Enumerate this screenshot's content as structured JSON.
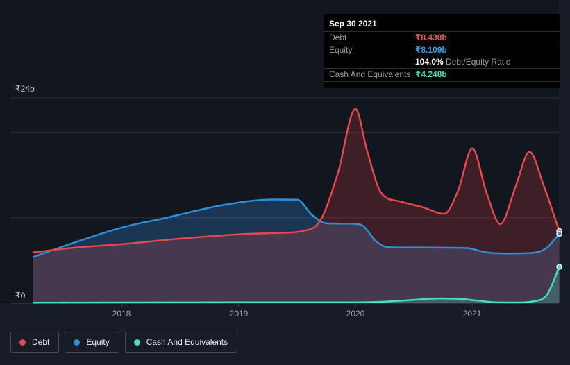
{
  "tooltip": {
    "date": "Sep 30 2021",
    "debt_label": "Debt",
    "debt_value": "₹8.430b",
    "equity_label": "Equity",
    "equity_value": "₹8.109b",
    "ratio_value": "104.0%",
    "ratio_label": "Debt/Equity Ratio",
    "cash_label": "Cash And Equivalents",
    "cash_value": "₹4.248b"
  },
  "y_axis": {
    "top_label": "₹24b",
    "zero_label": "₹0"
  },
  "legend": {
    "items": [
      {
        "label": "Debt",
        "color": "#e5484d"
      },
      {
        "label": "Equity",
        "color": "#2b90d9"
      },
      {
        "label": "Cash And Equivalents",
        "color": "#45e0c2"
      }
    ]
  },
  "colors": {
    "background": "#171c26",
    "plot_background": "#12161f",
    "gridline": "#272d37",
    "baseline": "#3d434d",
    "debt": "#e5484d",
    "equity": "#2b90d9",
    "cash": "#45e0c2",
    "debt_fill": "rgba(225,65,70,0.22)",
    "equity_fill": "rgba(45,140,220,0.28)",
    "cash_fill": "rgba(80,227,195,0.22)"
  },
  "chart_data": {
    "type": "area",
    "title": "Debt vs Equity vs Cash history (simplywall.st style)",
    "x_unit": "year (decimal)",
    "y_unit": "₹ billions",
    "xlim": [
      2017.243,
      2021.745
    ],
    "ylim": [
      0,
      24
    ],
    "x_ticks": [
      2018,
      2019,
      2020,
      2021
    ],
    "y_gridlines": [
      0,
      10,
      20,
      24
    ],
    "legend_position": "bottom-left",
    "grid": true,
    "last_point_date": "Sep 30 2021",
    "series": [
      {
        "name": "Debt",
        "points": [
          [
            2017.243,
            5.95
          ],
          [
            2017.6,
            6.5
          ],
          [
            2018.0,
            6.9
          ],
          [
            2018.5,
            7.55
          ],
          [
            2019.0,
            8.05
          ],
          [
            2019.3,
            8.2
          ],
          [
            2019.55,
            8.45
          ],
          [
            2019.7,
            9.7
          ],
          [
            2019.85,
            15.2
          ],
          [
            2020.0,
            22.7
          ],
          [
            2020.1,
            17.8
          ],
          [
            2020.22,
            12.9
          ],
          [
            2020.38,
            11.9
          ],
          [
            2020.58,
            11.2
          ],
          [
            2020.76,
            10.45
          ],
          [
            2020.88,
            13.2
          ],
          [
            2021.0,
            18.1
          ],
          [
            2021.12,
            13.0
          ],
          [
            2021.24,
            9.25
          ],
          [
            2021.37,
            13.6
          ],
          [
            2021.49,
            17.7
          ],
          [
            2021.61,
            13.8
          ],
          [
            2021.745,
            8.43
          ]
        ]
      },
      {
        "name": "Equity",
        "points": [
          [
            2017.243,
            5.4
          ],
          [
            2017.5,
            6.65
          ],
          [
            2018.0,
            8.85
          ],
          [
            2018.4,
            10.05
          ],
          [
            2018.8,
            11.3
          ],
          [
            2019.1,
            11.95
          ],
          [
            2019.3,
            12.12
          ],
          [
            2019.5,
            12.1
          ],
          [
            2019.63,
            10.3
          ],
          [
            2019.75,
            9.35
          ],
          [
            2019.95,
            9.3
          ],
          [
            2020.05,
            9.15
          ],
          [
            2020.18,
            7.2
          ],
          [
            2020.28,
            6.55
          ],
          [
            2020.6,
            6.5
          ],
          [
            2020.95,
            6.45
          ],
          [
            2021.12,
            5.95
          ],
          [
            2021.3,
            5.82
          ],
          [
            2021.5,
            5.87
          ],
          [
            2021.63,
            6.4
          ],
          [
            2021.745,
            8.11
          ]
        ]
      },
      {
        "name": "Cash And Equivalents",
        "points": [
          [
            2017.243,
            0.06
          ],
          [
            2018.0,
            0.08
          ],
          [
            2019.0,
            0.1
          ],
          [
            2019.9,
            0.1
          ],
          [
            2020.2,
            0.15
          ],
          [
            2020.45,
            0.35
          ],
          [
            2020.72,
            0.56
          ],
          [
            2020.9,
            0.5
          ],
          [
            2021.05,
            0.3
          ],
          [
            2021.2,
            0.1
          ],
          [
            2021.4,
            0.08
          ],
          [
            2021.52,
            0.22
          ],
          [
            2021.64,
            1.0
          ],
          [
            2021.745,
            4.25
          ]
        ]
      }
    ]
  }
}
